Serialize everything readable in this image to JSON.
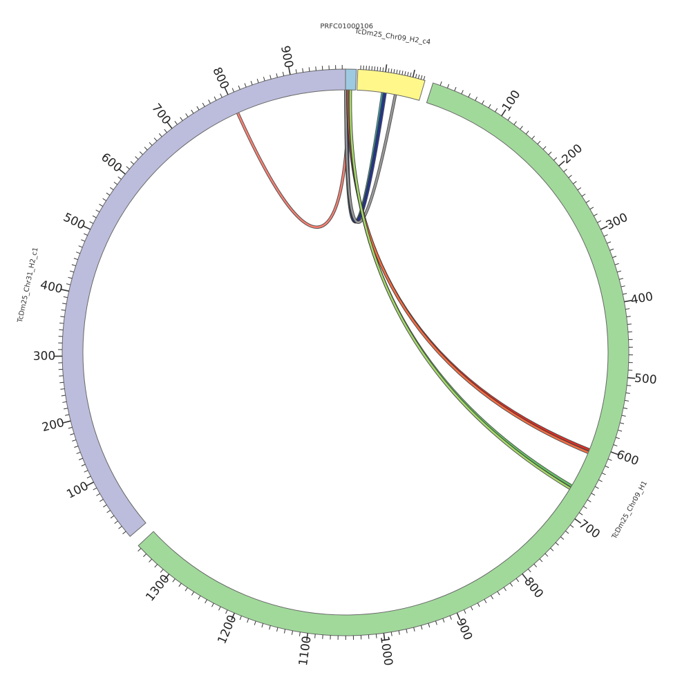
{
  "chromosomes": [
    {
      "id": "PRFC",
      "label": "PRFC01000106",
      "start": 0,
      "end": 25,
      "color": "#9ecae1"
    },
    {
      "id": "C4",
      "label": "TcDm25_Chr09_H2_c4",
      "start": 0,
      "end": 245,
      "color": "#fff78a"
    },
    {
      "id": "H1",
      "label": "TcDm25_Chr09_H1",
      "start": 0,
      "end": 1355,
      "color": "#a1d99b"
    },
    {
      "id": "C1",
      "label": "TcDm25_Chr31_H2_c1",
      "start": 0,
      "end": 985,
      "color": "#bcbddc"
    }
  ],
  "tick_labels": {
    "H1": [
      "100",
      "200",
      "300",
      "400",
      "500",
      "600",
      "700",
      "800",
      "900",
      "1000",
      "1100",
      "1200",
      "1300"
    ],
    "C1": [
      "100",
      "200",
      "300",
      "400",
      "500",
      "600",
      "700",
      "800",
      "900"
    ]
  },
  "links": [
    {
      "from": "PRFC",
      "from_pos": 12,
      "to": "C1",
      "to_pos": 802,
      "color": "#fb8072"
    },
    {
      "from": "C4",
      "from_pos": 100,
      "to": "PRFC",
      "to_pos": 6,
      "color": "#41b6c4"
    },
    {
      "from": "C4",
      "from_pos": 106,
      "to": "PRFC",
      "to_pos": 8,
      "color": "#225ea8"
    },
    {
      "from": "C4",
      "from_pos": 110,
      "to": "PRFC",
      "to_pos": 9,
      "color": "#253494"
    },
    {
      "from": "C4",
      "from_pos": 150,
      "to": "PRFC",
      "to_pos": 6,
      "color": "#999999"
    },
    {
      "from": "PRFC",
      "from_pos": 10,
      "to": "H1",
      "to_pos": 608,
      "color": "#d73027"
    },
    {
      "from": "PRFC",
      "from_pos": 11,
      "to": "H1",
      "to_pos": 612,
      "color": "#f46d43"
    },
    {
      "from": "PRFC",
      "from_pos": 14,
      "to": "H1",
      "to_pos": 665,
      "color": "#66bd63"
    },
    {
      "from": "PRFC",
      "from_pos": 15,
      "to": "H1",
      "to_pos": 669,
      "color": "#a6d96a"
    }
  ]
}
